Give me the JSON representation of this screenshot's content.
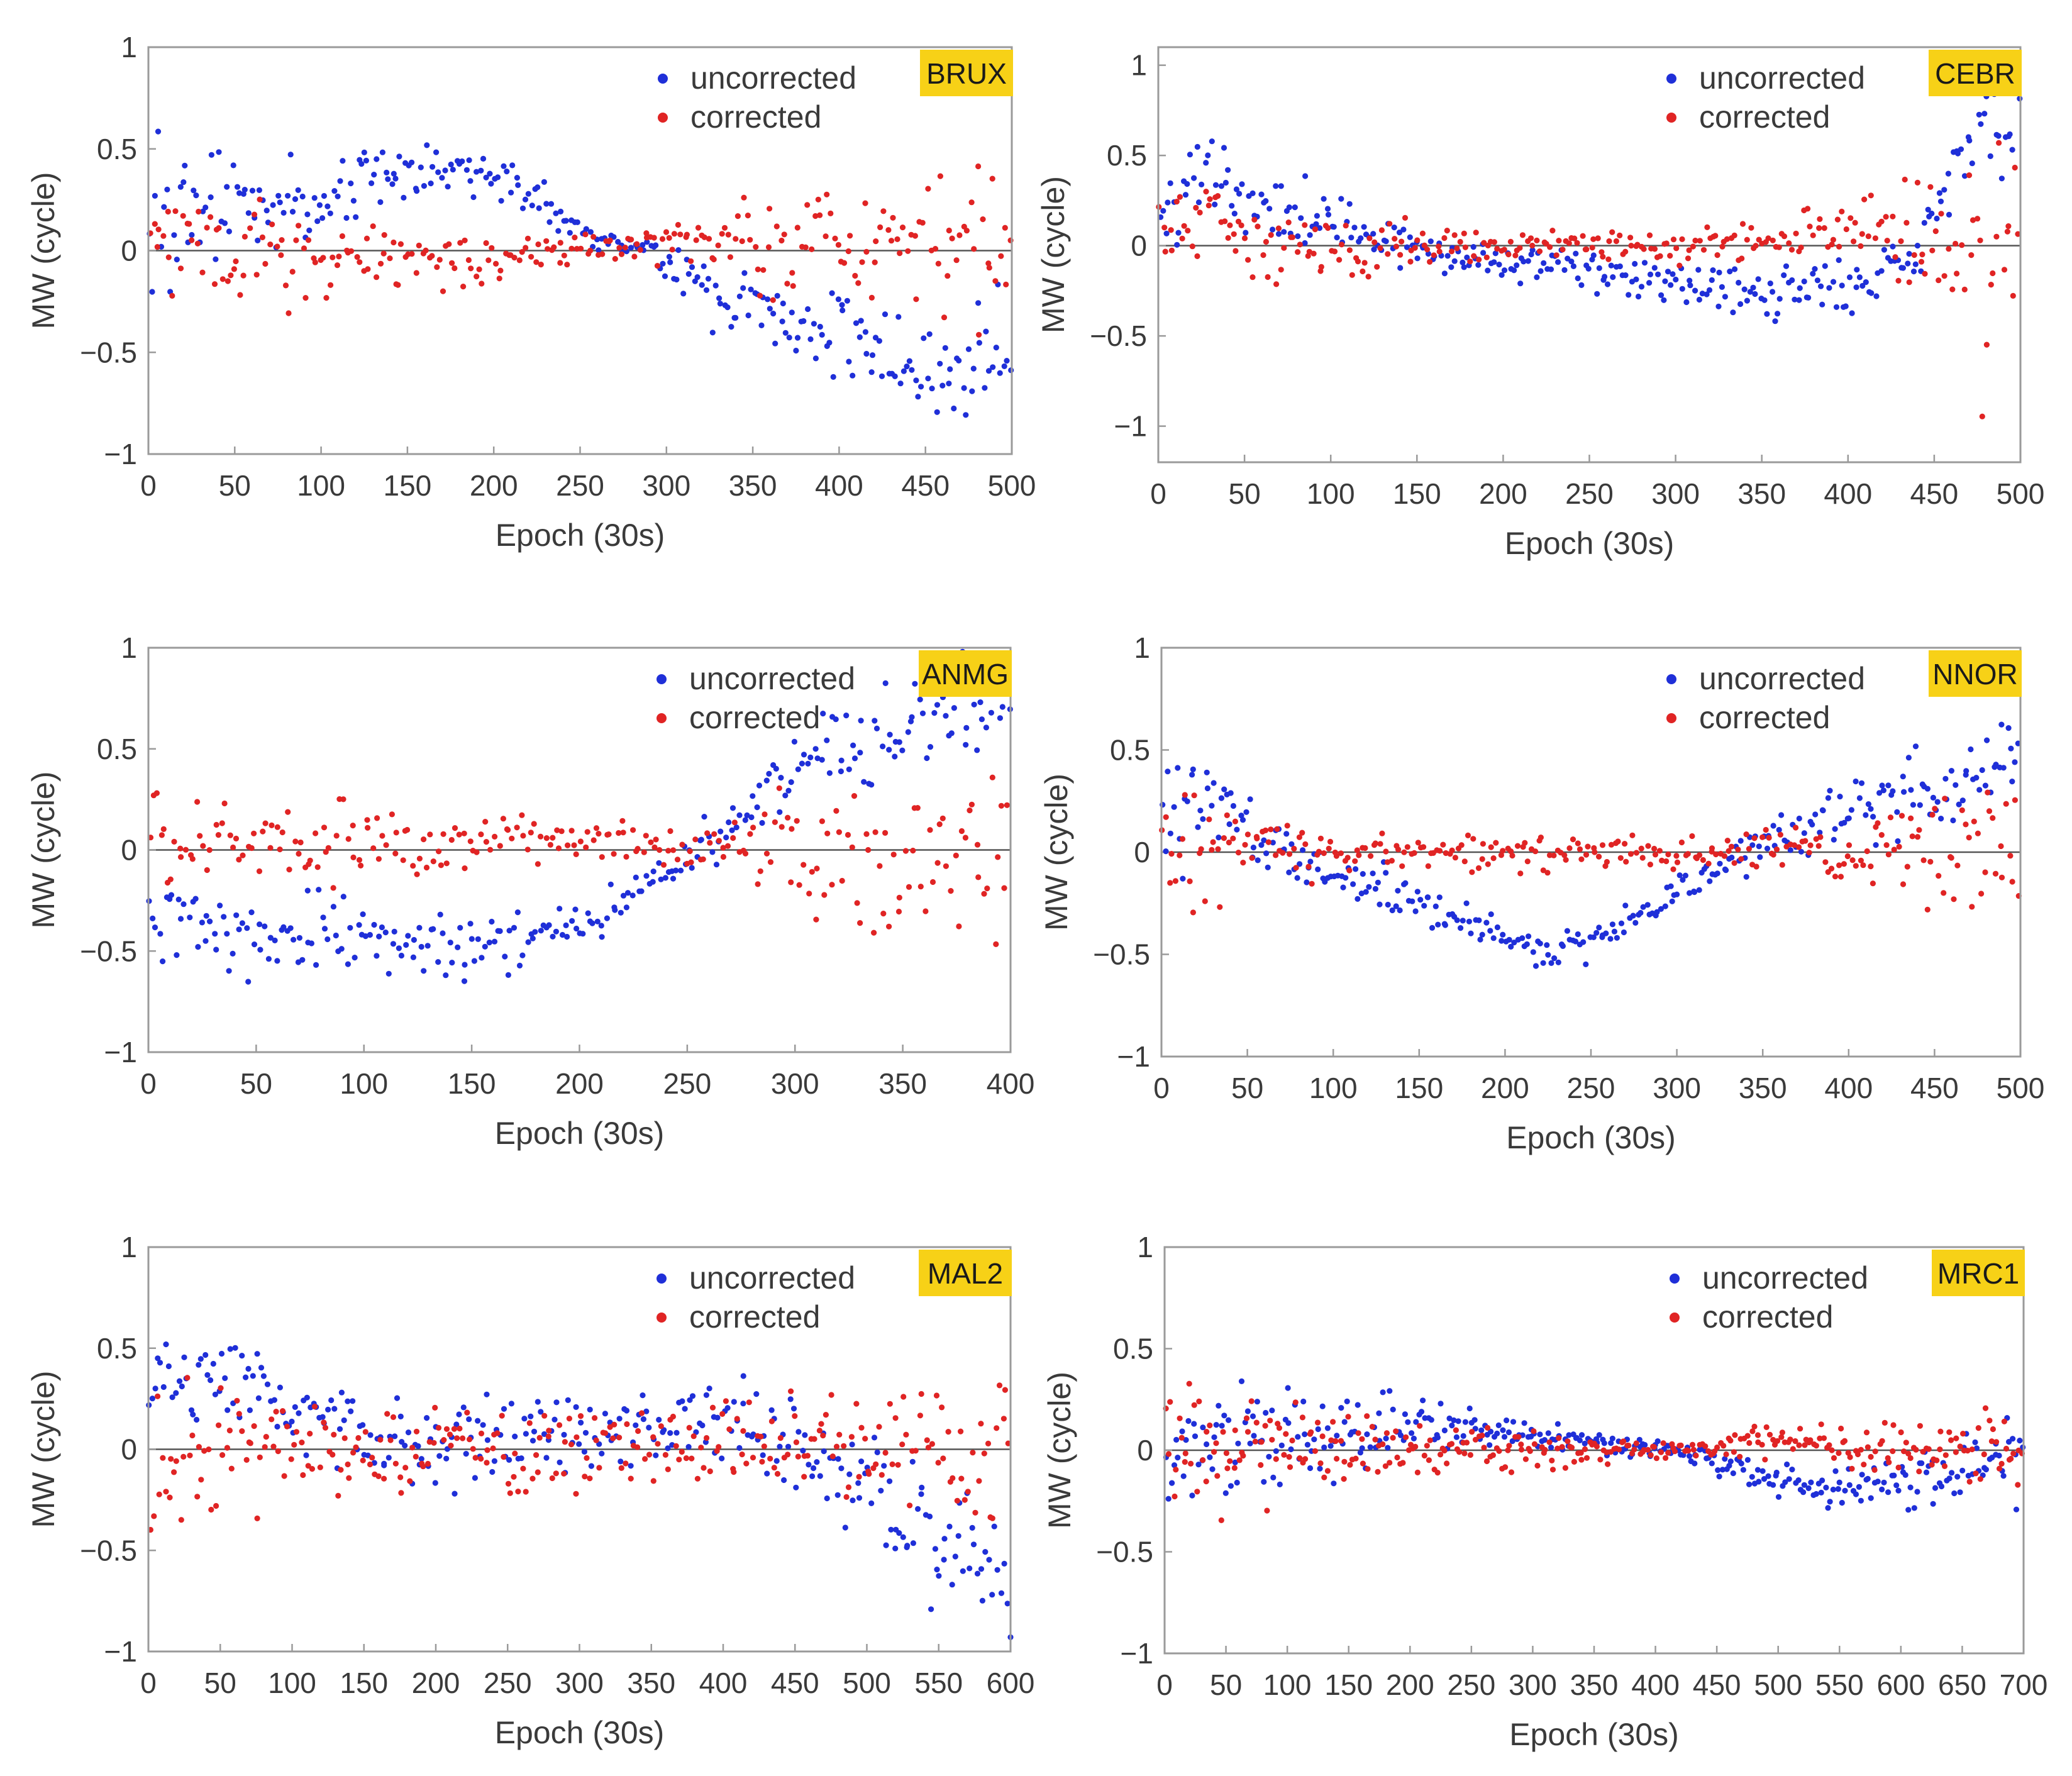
{
  "colors": {
    "uncorrected": "#1f2fd8",
    "corrected": "#e02424",
    "badge": "#f7d117",
    "zero_line": "#555555"
  },
  "chart_data": [
    {
      "type": "scatter",
      "station": "BRUX",
      "xlabel": "Epoch (30s)",
      "ylabel": "MW (cycle)",
      "xlim": [
        0,
        500
      ],
      "ylim": [
        -1,
        1
      ],
      "xticks": [
        0,
        50,
        100,
        150,
        200,
        250,
        300,
        350,
        400,
        450,
        500
      ],
      "yticks": [
        1,
        0.5,
        0,
        -0.5,
        -1
      ],
      "ytick_labels": [
        "1",
        "0.5",
        "0",
        "−0.5",
        "−1"
      ],
      "legend": [
        "uncorrected",
        "corrected"
      ],
      "series": [
        {
          "name": "uncorrected",
          "anchors": [
            [
              0,
              0.15
            ],
            [
              50,
              0.2
            ],
            [
              100,
              0.28
            ],
            [
              150,
              0.38
            ],
            [
              180,
              0.38
            ],
            [
              220,
              0.28
            ],
            [
              260,
              0.05
            ],
            [
              290,
              0.0
            ],
            [
              330,
              -0.2
            ],
            [
              380,
              -0.4
            ],
            [
              430,
              -0.55
            ],
            [
              470,
              -0.65
            ],
            [
              495,
              -0.5
            ]
          ],
          "noise": [
            [
              0,
              0.32
            ],
            [
              100,
              0.2
            ],
            [
              200,
              0.1
            ],
            [
              280,
              0.05
            ],
            [
              350,
              0.2
            ],
            [
              500,
              0.28
            ]
          ]
        },
        {
          "name": "corrected",
          "anchors": [
            [
              0,
              0.05
            ],
            [
              50,
              0.0
            ],
            [
              100,
              -0.05
            ],
            [
              200,
              -0.02
            ],
            [
              250,
              0.0
            ],
            [
              300,
              0.05
            ],
            [
              400,
              0.0
            ],
            [
              500,
              0.05
            ]
          ],
          "noise": [
            [
              0,
              0.28
            ],
            [
              100,
              0.16
            ],
            [
              200,
              0.1
            ],
            [
              280,
              0.06
            ],
            [
              350,
              0.25
            ],
            [
              500,
              0.4
            ]
          ]
        }
      ]
    },
    {
      "type": "scatter",
      "station": "CEBR",
      "xlabel": "Epoch (30s)",
      "ylabel": "MW (cycle)",
      "xlim": [
        0,
        500
      ],
      "ylim": [
        -1.2,
        1.1
      ],
      "xticks": [
        0,
        50,
        100,
        150,
        200,
        250,
        300,
        350,
        400,
        450,
        500
      ],
      "yticks": [
        1,
        0.5,
        0,
        -0.5,
        -1
      ],
      "ytick_labels": [
        "1",
        "0.5",
        "0",
        "−0.5",
        "−1"
      ],
      "legend": [
        "uncorrected",
        "corrected"
      ],
      "series": [
        {
          "name": "uncorrected",
          "anchors": [
            [
              0,
              0.0
            ],
            [
              25,
              0.45
            ],
            [
              50,
              0.25
            ],
            [
              100,
              0.1
            ],
            [
              150,
              0.0
            ],
            [
              200,
              -0.1
            ],
            [
              250,
              -0.15
            ],
            [
              300,
              -0.2
            ],
            [
              350,
              -0.25
            ],
            [
              400,
              -0.2
            ],
            [
              440,
              -0.1
            ],
            [
              460,
              0.4
            ],
            [
              500,
              0.7
            ]
          ],
          "noise": [
            [
              0,
              0.25
            ],
            [
              50,
              0.2
            ],
            [
              150,
              0.1
            ],
            [
              300,
              0.12
            ],
            [
              440,
              0.15
            ],
            [
              500,
              0.35
            ]
          ]
        },
        {
          "name": "corrected",
          "anchors": [
            [
              0,
              0.0
            ],
            [
              30,
              0.2
            ],
            [
              60,
              0.0
            ],
            [
              200,
              0.0
            ],
            [
              300,
              0.0
            ],
            [
              400,
              0.1
            ],
            [
              450,
              0.0
            ],
            [
              480,
              -0.2
            ],
            [
              500,
              0.0
            ]
          ],
          "noise": [
            [
              0,
              0.2
            ],
            [
              50,
              0.2
            ],
            [
              200,
              0.07
            ],
            [
              400,
              0.14
            ],
            [
              470,
              0.5
            ],
            [
              500,
              0.6
            ]
          ]
        }
      ]
    },
    {
      "type": "scatter",
      "station": "ANMG",
      "xlabel": "Epoch (30s)",
      "ylabel": "MW (cycle)",
      "xlim": [
        0,
        400
      ],
      "ylim": [
        -1,
        1
      ],
      "xticks": [
        0,
        50,
        100,
        150,
        200,
        250,
        300,
        350,
        400
      ],
      "yticks": [
        1,
        0.5,
        0,
        -0.5,
        -1
      ],
      "ytick_labels": [
        "1",
        "0.5",
        "0",
        "−0.5",
        "−1"
      ],
      "legend": [
        "uncorrected",
        "corrected"
      ],
      "series": [
        {
          "name": "uncorrected",
          "anchors": [
            [
              0,
              -0.3
            ],
            [
              50,
              -0.45
            ],
            [
              100,
              -0.4
            ],
            [
              150,
              -0.5
            ],
            [
              200,
              -0.35
            ],
            [
              240,
              -0.1
            ],
            [
              270,
              0.1
            ],
            [
              300,
              0.4
            ],
            [
              350,
              0.6
            ],
            [
              400,
              0.7
            ]
          ],
          "noise": [
            [
              0,
              0.2
            ],
            [
              100,
              0.16
            ],
            [
              200,
              0.12
            ],
            [
              250,
              0.08
            ],
            [
              300,
              0.2
            ],
            [
              400,
              0.3
            ]
          ]
        },
        {
          "name": "corrected",
          "anchors": [
            [
              0,
              0.05
            ],
            [
              50,
              0.05
            ],
            [
              100,
              0.05
            ],
            [
              200,
              0.05
            ],
            [
              250,
              0.0
            ],
            [
              300,
              0.0
            ],
            [
              350,
              -0.1
            ],
            [
              400,
              0.0
            ]
          ],
          "noise": [
            [
              0,
              0.2
            ],
            [
              100,
              0.18
            ],
            [
              200,
              0.1
            ],
            [
              260,
              0.08
            ],
            [
              320,
              0.35
            ],
            [
              400,
              0.5
            ]
          ]
        }
      ]
    },
    {
      "type": "scatter",
      "station": "NNOR",
      "xlabel": "Epoch (30s)",
      "ylabel": "MW (cycle)",
      "xlim": [
        0,
        500
      ],
      "ylim": [
        -1,
        1
      ],
      "xticks": [
        0,
        50,
        100,
        150,
        200,
        250,
        300,
        350,
        400,
        450,
        500
      ],
      "yticks": [
        1,
        0.5,
        0,
        -0.5,
        -1
      ],
      "ytick_labels": [
        "1",
        "0.5",
        "0",
        "−0.5",
        "−1"
      ],
      "legend": [
        "uncorrected",
        "corrected"
      ],
      "series": [
        {
          "name": "uncorrected",
          "anchors": [
            [
              0,
              0.2
            ],
            [
              30,
              0.25
            ],
            [
              60,
              0.05
            ],
            [
              100,
              -0.1
            ],
            [
              150,
              -0.25
            ],
            [
              200,
              -0.42
            ],
            [
              230,
              -0.48
            ],
            [
              260,
              -0.4
            ],
            [
              300,
              -0.2
            ],
            [
              340,
              0.0
            ],
            [
              400,
              0.2
            ],
            [
              450,
              0.3
            ],
            [
              500,
              0.45
            ]
          ],
          "noise": [
            [
              0,
              0.35
            ],
            [
              50,
              0.2
            ],
            [
              150,
              0.08
            ],
            [
              250,
              0.08
            ],
            [
              350,
              0.1
            ],
            [
              500,
              0.25
            ]
          ]
        },
        {
          "name": "corrected",
          "anchors": [
            [
              0,
              0.0
            ],
            [
              50,
              0.0
            ],
            [
              200,
              0.0
            ],
            [
              300,
              0.0
            ],
            [
              400,
              0.0
            ],
            [
              500,
              0.05
            ]
          ],
          "noise": [
            [
              0,
              0.35
            ],
            [
              50,
              0.15
            ],
            [
              150,
              0.08
            ],
            [
              300,
              0.07
            ],
            [
              400,
              0.15
            ],
            [
              500,
              0.35
            ]
          ]
        }
      ]
    },
    {
      "type": "scatter",
      "station": "MAL2",
      "xlabel": "Epoch (30s)",
      "ylabel": "MW (cycle)",
      "xlim": [
        0,
        600
      ],
      "ylim": [
        -1,
        1
      ],
      "xticks": [
        0,
        50,
        100,
        150,
        200,
        250,
        300,
        350,
        400,
        450,
        500,
        550,
        600
      ],
      "yticks": [
        1,
        0.5,
        0,
        -0.5,
        -1
      ],
      "ytick_labels": [
        "1",
        "0.5",
        "0",
        "−0.5",
        "−1"
      ],
      "legend": [
        "uncorrected",
        "corrected"
      ],
      "series": [
        {
          "name": "uncorrected",
          "anchors": [
            [
              0,
              0.2
            ],
            [
              50,
              0.35
            ],
            [
              100,
              0.2
            ],
            [
              150,
              0.1
            ],
            [
              200,
              0.0
            ],
            [
              250,
              0.05
            ],
            [
              300,
              0.1
            ],
            [
              350,
              0.15
            ],
            [
              400,
              0.15
            ],
            [
              450,
              0.05
            ],
            [
              500,
              -0.2
            ],
            [
              550,
              -0.5
            ],
            [
              600,
              -0.6
            ]
          ],
          "noise": [
            [
              0,
              0.3
            ],
            [
              100,
              0.25
            ],
            [
              200,
              0.2
            ],
            [
              400,
              0.18
            ],
            [
              500,
              0.25
            ],
            [
              600,
              0.3
            ]
          ]
        },
        {
          "name": "corrected",
          "anchors": [
            [
              0,
              -0.1
            ],
            [
              50,
              0.0
            ],
            [
              100,
              0.0
            ],
            [
              200,
              0.0
            ],
            [
              300,
              0.0
            ],
            [
              400,
              0.0
            ],
            [
              500,
              0.05
            ],
            [
              550,
              0.0
            ],
            [
              600,
              -0.1
            ]
          ],
          "noise": [
            [
              0,
              0.35
            ],
            [
              100,
              0.22
            ],
            [
              200,
              0.2
            ],
            [
              400,
              0.18
            ],
            [
              500,
              0.25
            ],
            [
              600,
              0.35
            ]
          ]
        }
      ]
    },
    {
      "type": "scatter",
      "station": "MRC1",
      "xlabel": "Epoch (30s)",
      "ylabel": "MW (cycle)",
      "xlim": [
        0,
        700
      ],
      "ylim": [
        -1,
        1
      ],
      "xticks": [
        0,
        50,
        100,
        150,
        200,
        250,
        300,
        350,
        400,
        450,
        500,
        550,
        600,
        650,
        700
      ],
      "yticks": [
        1,
        0.5,
        0,
        -0.5,
        -1
      ],
      "ytick_labels": [
        "1",
        "0.5",
        "0",
        "−0.5",
        "−1"
      ],
      "legend": [
        "uncorrected",
        "corrected"
      ],
      "series": [
        {
          "name": "uncorrected",
          "anchors": [
            [
              0,
              -0.05
            ],
            [
              100,
              0.05
            ],
            [
              200,
              0.1
            ],
            [
              300,
              0.08
            ],
            [
              400,
              0.0
            ],
            [
              450,
              -0.05
            ],
            [
              500,
              -0.15
            ],
            [
              550,
              -0.2
            ],
            [
              600,
              -0.15
            ],
            [
              650,
              -0.1
            ],
            [
              700,
              0.0
            ]
          ],
          "noise": [
            [
              0,
              0.3
            ],
            [
              100,
              0.2
            ],
            [
              300,
              0.08
            ],
            [
              420,
              0.04
            ],
            [
              550,
              0.1
            ],
            [
              700,
              0.2
            ]
          ]
        },
        {
          "name": "corrected",
          "anchors": [
            [
              0,
              0.0
            ],
            [
              100,
              0.0
            ],
            [
              200,
              -0.02
            ],
            [
              300,
              0.0
            ],
            [
              400,
              0.0
            ],
            [
              500,
              0.05
            ],
            [
              600,
              0.0
            ],
            [
              700,
              0.0
            ]
          ],
          "noise": [
            [
              0,
              0.35
            ],
            [
              100,
              0.2
            ],
            [
              300,
              0.08
            ],
            [
              420,
              0.04
            ],
            [
              550,
              0.08
            ],
            [
              700,
              0.2
            ]
          ]
        }
      ]
    }
  ]
}
